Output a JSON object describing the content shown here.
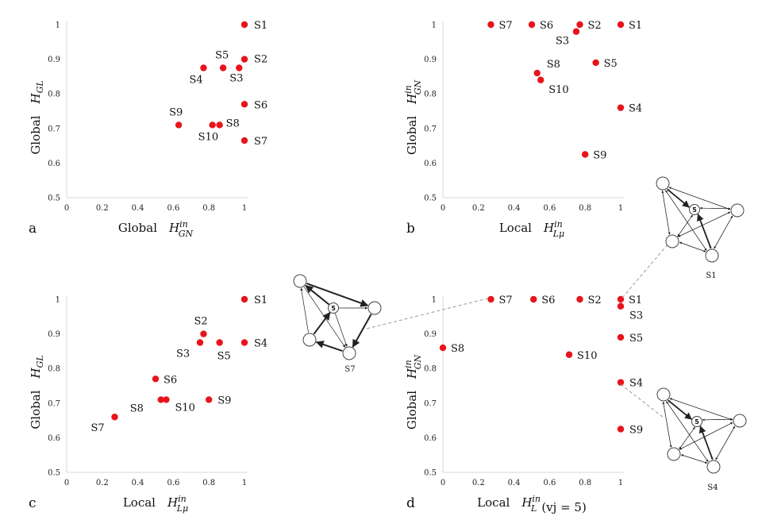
{
  "colors": {
    "point": "#e8141b",
    "axis": "#dadada",
    "text": "#111111"
  },
  "chart_data": [
    {
      "type": "scatter",
      "panel": "a",
      "xlabel": {
        "prefix": "Global",
        "sym": "H",
        "sub": "GN",
        "sup": "in",
        "suffix": ""
      },
      "ylabel": {
        "prefix": "Global",
        "sym": "H",
        "sub": "GL",
        "sup": "",
        "suffix": ""
      },
      "xlim": [
        0,
        1
      ],
      "ylim": [
        0.5,
        1
      ],
      "xticks": [
        "0",
        "0.2",
        "0.4",
        "0.6",
        "0.8",
        "1"
      ],
      "yticks": [
        "0.5",
        "0.6",
        "0.7",
        "0.8",
        "0.9",
        "1"
      ],
      "points": [
        {
          "label": "S1",
          "x": 1.0,
          "y": 1.0
        },
        {
          "label": "S2",
          "x": 1.0,
          "y": 0.9
        },
        {
          "label": "S3",
          "x": 0.97,
          "y": 0.875
        },
        {
          "label": "S4",
          "x": 0.77,
          "y": 0.875
        },
        {
          "label": "S5",
          "x": 0.88,
          "y": 0.875
        },
        {
          "label": "S6",
          "x": 1.0,
          "y": 0.77
        },
        {
          "label": "S7",
          "x": 1.0,
          "y": 0.665
        },
        {
          "label": "S8",
          "x": 0.86,
          "y": 0.71
        },
        {
          "label": "S9",
          "x": 0.63,
          "y": 0.71
        },
        {
          "label": "S10",
          "x": 0.82,
          "y": 0.71
        }
      ]
    },
    {
      "type": "scatter",
      "panel": "b",
      "xlabel": {
        "prefix": "Local",
        "sym": "H",
        "sub": "Lμ",
        "sup": "in",
        "suffix": ""
      },
      "ylabel": {
        "prefix": "Global",
        "sym": "H",
        "sub": "GN",
        "sup": "in",
        "suffix": ""
      },
      "xlim": [
        0,
        1
      ],
      "ylim": [
        0.5,
        1
      ],
      "xticks": [
        "0",
        "0.2",
        "0.4",
        "0.6",
        "0.8",
        "1"
      ],
      "yticks": [
        "0.5",
        "0.6",
        "0.7",
        "0.8",
        "0.9",
        "1"
      ],
      "points": [
        {
          "label": "S7",
          "x": 0.27,
          "y": 1.0
        },
        {
          "label": "S6",
          "x": 0.5,
          "y": 1.0
        },
        {
          "label": "S2",
          "x": 0.77,
          "y": 1.0
        },
        {
          "label": "S1",
          "x": 1.0,
          "y": 1.0
        },
        {
          "label": "S3",
          "x": 0.75,
          "y": 0.98
        },
        {
          "label": "S5",
          "x": 0.86,
          "y": 0.89
        },
        {
          "label": "S8",
          "x": 0.53,
          "y": 0.86
        },
        {
          "label": "S10",
          "x": 0.55,
          "y": 0.84
        },
        {
          "label": "S4",
          "x": 1.0,
          "y": 0.76
        },
        {
          "label": "S9",
          "x": 0.8,
          "y": 0.625
        }
      ]
    },
    {
      "type": "scatter",
      "panel": "c",
      "xlabel": {
        "prefix": "Local",
        "sym": "H",
        "sub": "Lμ",
        "sup": "in",
        "suffix": ""
      },
      "ylabel": {
        "prefix": "Global",
        "sym": "H",
        "sub": "GL",
        "sup": "",
        "suffix": ""
      },
      "xlim": [
        0,
        1
      ],
      "ylim": [
        0.5,
        1
      ],
      "xticks": [
        "0",
        "0.2",
        "0.4",
        "0.6",
        "0.8",
        "1"
      ],
      "yticks": [
        "0.5",
        "0.6",
        "0.7",
        "0.8",
        "0.9",
        "1"
      ],
      "points": [
        {
          "label": "S1",
          "x": 1.0,
          "y": 1.0
        },
        {
          "label": "S2",
          "x": 0.77,
          "y": 0.9
        },
        {
          "label": "S3",
          "x": 0.75,
          "y": 0.875
        },
        {
          "label": "S5",
          "x": 0.86,
          "y": 0.875
        },
        {
          "label": "S4",
          "x": 1.0,
          "y": 0.875
        },
        {
          "label": "S6",
          "x": 0.5,
          "y": 0.77
        },
        {
          "label": "S8",
          "x": 0.53,
          "y": 0.71
        },
        {
          "label": "S10",
          "x": 0.56,
          "y": 0.71
        },
        {
          "label": "S9",
          "x": 0.8,
          "y": 0.71
        },
        {
          "label": "S7",
          "x": 0.27,
          "y": 0.66
        }
      ]
    },
    {
      "type": "scatter",
      "panel": "d",
      "xlabel": {
        "prefix": "Local",
        "sym": "H",
        "sub": "L",
        "sup": "in",
        "suffix": "(vj = 5)"
      },
      "ylabel": {
        "prefix": "Global",
        "sym": "H",
        "sub": "GN",
        "sup": "in",
        "suffix": ""
      },
      "xlim": [
        0,
        1
      ],
      "ylim": [
        0.5,
        1
      ],
      "xticks": [
        "0",
        "0.2",
        "0.4",
        "0.6",
        "0.8",
        "1"
      ],
      "yticks": [
        "0.5",
        "0.6",
        "0.7",
        "0.8",
        "0.9",
        "1"
      ],
      "points": [
        {
          "label": "S7",
          "x": 0.27,
          "y": 1.0
        },
        {
          "label": "S6",
          "x": 0.51,
          "y": 1.0
        },
        {
          "label": "S2",
          "x": 0.77,
          "y": 1.0
        },
        {
          "label": "S1",
          "x": 1.0,
          "y": 1.0
        },
        {
          "label": "S3",
          "x": 1.0,
          "y": 0.98
        },
        {
          "label": "S5",
          "x": 1.0,
          "y": 0.89
        },
        {
          "label": "S8",
          "x": 0.0,
          "y": 0.86
        },
        {
          "label": "S10",
          "x": 0.71,
          "y": 0.84
        },
        {
          "label": "S4",
          "x": 1.0,
          "y": 0.76
        },
        {
          "label": "S9",
          "x": 1.0,
          "y": 0.625
        }
      ]
    }
  ],
  "networks": [
    {
      "caption": "S1",
      "center_label": "5",
      "style": "dense"
    },
    {
      "caption": "S7",
      "center_label": "5",
      "style": "sparse"
    },
    {
      "caption": "S4",
      "center_label": "5",
      "style": "dense"
    }
  ]
}
